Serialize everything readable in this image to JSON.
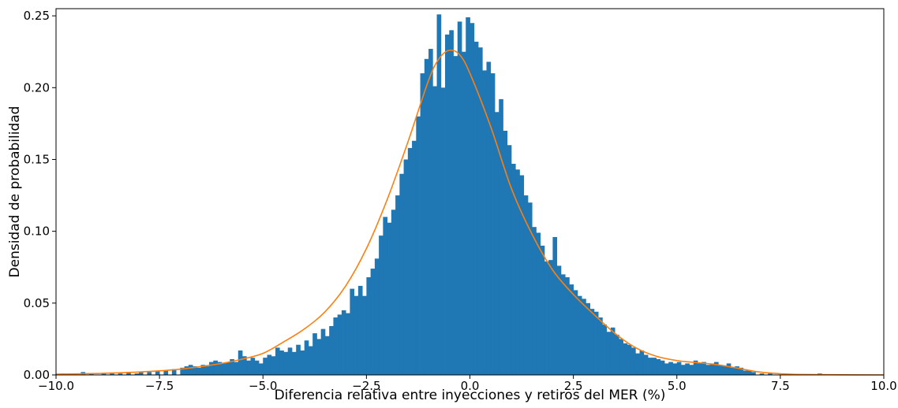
{
  "chart_data": {
    "type": "bar",
    "subtype": "histogram-with-density-curve",
    "title": "",
    "xlabel": "Diferencia relativa entre inyecciones y retiros del MER (%)",
    "ylabel": "Densidad de probabilidad",
    "xlim": [
      -10.0,
      10.0
    ],
    "ylim": [
      0.0,
      0.255
    ],
    "grid": false,
    "x_ticks": [
      -10.0,
      -7.5,
      -5.0,
      -2.5,
      0.0,
      2.5,
      5.0,
      7.5,
      10.0
    ],
    "x_tick_labels": [
      "−10.0",
      "−7.5",
      "−5.0",
      "−2.5",
      "0.0",
      "2.5",
      "5.0",
      "7.5",
      "10.0"
    ],
    "y_ticks": [
      0.0,
      0.05,
      0.1,
      0.15,
      0.2,
      0.25
    ],
    "y_tick_labels": [
      "0.00",
      "0.05",
      "0.10",
      "0.15",
      "0.20",
      "0.25"
    ],
    "bin_width": 0.1,
    "series": [
      {
        "kind": "histogram",
        "color": "#1f77b4",
        "bins": [
          {
            "x": -9.9,
            "y": 0.001
          },
          {
            "x": -9.7,
            "y": 0.001
          },
          {
            "x": -9.4,
            "y": 0.002
          },
          {
            "x": -9.2,
            "y": 0.001
          },
          {
            "x": -8.9,
            "y": 0.001
          },
          {
            "x": -8.7,
            "y": 0.001
          },
          {
            "x": -8.5,
            "y": 0.001
          },
          {
            "x": -8.3,
            "y": 0.002
          },
          {
            "x": -8.1,
            "y": 0.001
          },
          {
            "x": -8.0,
            "y": 0.002
          },
          {
            "x": -7.8,
            "y": 0.002
          },
          {
            "x": -7.6,
            "y": 0.003
          },
          {
            "x": -7.4,
            "y": 0.003
          },
          {
            "x": -7.2,
            "y": 0.004
          },
          {
            "x": -7.0,
            "y": 0.005
          },
          {
            "x": -6.9,
            "y": 0.006
          },
          {
            "x": -6.8,
            "y": 0.007
          },
          {
            "x": -6.7,
            "y": 0.006
          },
          {
            "x": -6.6,
            "y": 0.005
          },
          {
            "x": -6.5,
            "y": 0.007
          },
          {
            "x": -6.4,
            "y": 0.006
          },
          {
            "x": -6.3,
            "y": 0.009
          },
          {
            "x": -6.2,
            "y": 0.01
          },
          {
            "x": -6.1,
            "y": 0.009
          },
          {
            "x": -6.0,
            "y": 0.008
          },
          {
            "x": -5.9,
            "y": 0.009
          },
          {
            "x": -5.8,
            "y": 0.011
          },
          {
            "x": -5.7,
            "y": 0.009
          },
          {
            "x": -5.6,
            "y": 0.017
          },
          {
            "x": -5.5,
            "y": 0.013
          },
          {
            "x": -5.4,
            "y": 0.01
          },
          {
            "x": -5.3,
            "y": 0.012
          },
          {
            "x": -5.2,
            "y": 0.01
          },
          {
            "x": -5.1,
            "y": 0.008
          },
          {
            "x": -5.0,
            "y": 0.012
          },
          {
            "x": -4.9,
            "y": 0.014
          },
          {
            "x": -4.8,
            "y": 0.013
          },
          {
            "x": -4.7,
            "y": 0.019
          },
          {
            "x": -4.6,
            "y": 0.017
          },
          {
            "x": -4.5,
            "y": 0.016
          },
          {
            "x": -4.4,
            "y": 0.019
          },
          {
            "x": -4.3,
            "y": 0.016
          },
          {
            "x": -4.2,
            "y": 0.021
          },
          {
            "x": -4.1,
            "y": 0.017
          },
          {
            "x": -4.0,
            "y": 0.024
          },
          {
            "x": -3.9,
            "y": 0.02
          },
          {
            "x": -3.8,
            "y": 0.029
          },
          {
            "x": -3.7,
            "y": 0.025
          },
          {
            "x": -3.6,
            "y": 0.032
          },
          {
            "x": -3.5,
            "y": 0.027
          },
          {
            "x": -3.4,
            "y": 0.034
          },
          {
            "x": -3.3,
            "y": 0.04
          },
          {
            "x": -3.2,
            "y": 0.042
          },
          {
            "x": -3.1,
            "y": 0.045
          },
          {
            "x": -3.0,
            "y": 0.043
          },
          {
            "x": -2.9,
            "y": 0.06
          },
          {
            "x": -2.8,
            "y": 0.055
          },
          {
            "x": -2.7,
            "y": 0.062
          },
          {
            "x": -2.6,
            "y": 0.055
          },
          {
            "x": -2.5,
            "y": 0.068
          },
          {
            "x": -2.4,
            "y": 0.074
          },
          {
            "x": -2.3,
            "y": 0.081
          },
          {
            "x": -2.2,
            "y": 0.097
          },
          {
            "x": -2.1,
            "y": 0.11
          },
          {
            "x": -2.0,
            "y": 0.106
          },
          {
            "x": -1.9,
            "y": 0.115
          },
          {
            "x": -1.8,
            "y": 0.125
          },
          {
            "x": -1.7,
            "y": 0.14
          },
          {
            "x": -1.6,
            "y": 0.15
          },
          {
            "x": -1.5,
            "y": 0.158
          },
          {
            "x": -1.4,
            "y": 0.163
          },
          {
            "x": -1.3,
            "y": 0.18
          },
          {
            "x": -1.2,
            "y": 0.21
          },
          {
            "x": -1.1,
            "y": 0.22
          },
          {
            "x": -1.0,
            "y": 0.227
          },
          {
            "x": -0.9,
            "y": 0.201
          },
          {
            "x": -0.8,
            "y": 0.251
          },
          {
            "x": -0.7,
            "y": 0.2
          },
          {
            "x": -0.6,
            "y": 0.237
          },
          {
            "x": -0.5,
            "y": 0.24
          },
          {
            "x": -0.4,
            "y": 0.222
          },
          {
            "x": -0.3,
            "y": 0.246
          },
          {
            "x": -0.2,
            "y": 0.225
          },
          {
            "x": -0.1,
            "y": 0.249
          },
          {
            "x": 0.0,
            "y": 0.245
          },
          {
            "x": 0.1,
            "y": 0.232
          },
          {
            "x": 0.2,
            "y": 0.228
          },
          {
            "x": 0.3,
            "y": 0.212
          },
          {
            "x": 0.4,
            "y": 0.218
          },
          {
            "x": 0.5,
            "y": 0.21
          },
          {
            "x": 0.6,
            "y": 0.183
          },
          {
            "x": 0.7,
            "y": 0.192
          },
          {
            "x": 0.8,
            "y": 0.17
          },
          {
            "x": 0.9,
            "y": 0.16
          },
          {
            "x": 1.0,
            "y": 0.147
          },
          {
            "x": 1.1,
            "y": 0.143
          },
          {
            "x": 1.2,
            "y": 0.139
          },
          {
            "x": 1.3,
            "y": 0.125
          },
          {
            "x": 1.4,
            "y": 0.12
          },
          {
            "x": 1.5,
            "y": 0.103
          },
          {
            "x": 1.6,
            "y": 0.099
          },
          {
            "x": 1.7,
            "y": 0.09
          },
          {
            "x": 1.8,
            "y": 0.079
          },
          {
            "x": 1.9,
            "y": 0.08
          },
          {
            "x": 2.0,
            "y": 0.096
          },
          {
            "x": 2.1,
            "y": 0.076
          },
          {
            "x": 2.2,
            "y": 0.07
          },
          {
            "x": 2.3,
            "y": 0.068
          },
          {
            "x": 2.4,
            "y": 0.063
          },
          {
            "x": 2.5,
            "y": 0.059
          },
          {
            "x": 2.6,
            "y": 0.055
          },
          {
            "x": 2.7,
            "y": 0.053
          },
          {
            "x": 2.8,
            "y": 0.05
          },
          {
            "x": 2.9,
            "y": 0.046
          },
          {
            "x": 3.0,
            "y": 0.044
          },
          {
            "x": 3.1,
            "y": 0.04
          },
          {
            "x": 3.2,
            "y": 0.035
          },
          {
            "x": 3.3,
            "y": 0.03
          },
          {
            "x": 3.4,
            "y": 0.033
          },
          {
            "x": 3.5,
            "y": 0.028
          },
          {
            "x": 3.6,
            "y": 0.025
          },
          {
            "x": 3.7,
            "y": 0.022
          },
          {
            "x": 3.8,
            "y": 0.021
          },
          {
            "x": 3.9,
            "y": 0.019
          },
          {
            "x": 4.0,
            "y": 0.015
          },
          {
            "x": 4.1,
            "y": 0.017
          },
          {
            "x": 4.2,
            "y": 0.014
          },
          {
            "x": 4.3,
            "y": 0.012
          },
          {
            "x": 4.4,
            "y": 0.012
          },
          {
            "x": 4.5,
            "y": 0.011
          },
          {
            "x": 4.6,
            "y": 0.01
          },
          {
            "x": 4.7,
            "y": 0.008
          },
          {
            "x": 4.8,
            "y": 0.009
          },
          {
            "x": 4.9,
            "y": 0.008
          },
          {
            "x": 5.0,
            "y": 0.009
          },
          {
            "x": 5.1,
            "y": 0.007
          },
          {
            "x": 5.2,
            "y": 0.008
          },
          {
            "x": 5.3,
            "y": 0.007
          },
          {
            "x": 5.4,
            "y": 0.01
          },
          {
            "x": 5.5,
            "y": 0.008
          },
          {
            "x": 5.6,
            "y": 0.009
          },
          {
            "x": 5.7,
            "y": 0.007
          },
          {
            "x": 5.8,
            "y": 0.008
          },
          {
            "x": 5.9,
            "y": 0.009
          },
          {
            "x": 6.0,
            "y": 0.007
          },
          {
            "x": 6.1,
            "y": 0.006
          },
          {
            "x": 6.2,
            "y": 0.008
          },
          {
            "x": 6.3,
            "y": 0.005
          },
          {
            "x": 6.4,
            "y": 0.006
          },
          {
            "x": 6.5,
            "y": 0.005
          },
          {
            "x": 6.6,
            "y": 0.003
          },
          {
            "x": 6.7,
            "y": 0.003
          },
          {
            "x": 6.8,
            "y": 0.002
          },
          {
            "x": 7.0,
            "y": 0.001
          },
          {
            "x": 7.2,
            "y": 0.001
          },
          {
            "x": 8.4,
            "y": 0.001
          }
        ]
      },
      {
        "kind": "density-curve",
        "color": "#ff7f0e",
        "points": [
          {
            "x": -10.0,
            "y": 0.0005
          },
          {
            "x": -9.0,
            "y": 0.001
          },
          {
            "x": -8.0,
            "y": 0.002
          },
          {
            "x": -7.0,
            "y": 0.004
          },
          {
            "x": -6.0,
            "y": 0.008
          },
          {
            "x": -5.5,
            "y": 0.011
          },
          {
            "x": -5.0,
            "y": 0.015
          },
          {
            "x": -4.5,
            "y": 0.023
          },
          {
            "x": -4.0,
            "y": 0.032
          },
          {
            "x": -3.5,
            "y": 0.044
          },
          {
            "x": -3.0,
            "y": 0.062
          },
          {
            "x": -2.5,
            "y": 0.088
          },
          {
            "x": -2.0,
            "y": 0.122
          },
          {
            "x": -1.5,
            "y": 0.162
          },
          {
            "x": -1.0,
            "y": 0.205
          },
          {
            "x": -0.75,
            "y": 0.22
          },
          {
            "x": -0.5,
            "y": 0.226
          },
          {
            "x": -0.25,
            "y": 0.223
          },
          {
            "x": 0.0,
            "y": 0.21
          },
          {
            "x": 0.5,
            "y": 0.173
          },
          {
            "x": 1.0,
            "y": 0.13
          },
          {
            "x": 1.5,
            "y": 0.098
          },
          {
            "x": 2.0,
            "y": 0.073
          },
          {
            "x": 2.5,
            "y": 0.056
          },
          {
            "x": 3.0,
            "y": 0.042
          },
          {
            "x": 3.5,
            "y": 0.029
          },
          {
            "x": 4.0,
            "y": 0.019
          },
          {
            "x": 4.5,
            "y": 0.013
          },
          {
            "x": 5.0,
            "y": 0.01
          },
          {
            "x": 5.5,
            "y": 0.0085
          },
          {
            "x": 6.0,
            "y": 0.007
          },
          {
            "x": 6.5,
            "y": 0.0045
          },
          {
            "x": 7.0,
            "y": 0.002
          },
          {
            "x": 7.5,
            "y": 0.0008
          },
          {
            "x": 8.0,
            "y": 0.0003
          },
          {
            "x": 9.0,
            "y": 0.0001
          },
          {
            "x": 10.0,
            "y": 0.0
          }
        ]
      }
    ]
  }
}
